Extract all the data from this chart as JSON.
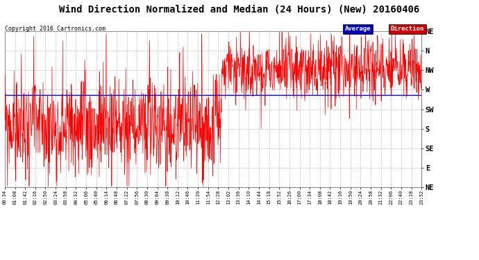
{
  "title": "Wind Direction Normalized and Median (24 Hours) (New) 20160406",
  "copyright": "Copyright 2016 Cartronics.com",
  "ytick_labels": [
    "NE",
    "N",
    "NW",
    "W",
    "SW",
    "S",
    "SE",
    "E",
    "NE"
  ],
  "ytick_values": [
    8,
    7,
    6,
    5,
    4,
    3,
    2,
    1,
    0
  ],
  "xtick_labels": [
    "00:34",
    "01:08",
    "01:42",
    "02:16",
    "02:50",
    "03:24",
    "03:58",
    "04:32",
    "05:06",
    "05:40",
    "06:14",
    "06:48",
    "07:22",
    "07:56",
    "08:30",
    "09:04",
    "09:38",
    "10:12",
    "10:46",
    "11:20",
    "11:54",
    "12:28",
    "13:02",
    "13:36",
    "14:10",
    "14:44",
    "15:18",
    "15:52",
    "16:26",
    "17:00",
    "17:34",
    "18:08",
    "18:42",
    "19:16",
    "19:50",
    "20:24",
    "20:58",
    "21:32",
    "22:06",
    "22:40",
    "23:18",
    "23:52"
  ],
  "median_value": 4.72,
  "red_line_color": "#ff0000",
  "blue_line_color": "#0000cc",
  "grid_color": "#aaaaaa",
  "background_color": "#ffffff",
  "title_fontsize": 10,
  "copyright_fontsize": 6,
  "legend_average_bg": "#0000bb",
  "legend_direction_bg": "#cc0000",
  "legend_text_color": "#ffffff",
  "figwidth": 6.9,
  "figheight": 3.75,
  "dpi": 100
}
